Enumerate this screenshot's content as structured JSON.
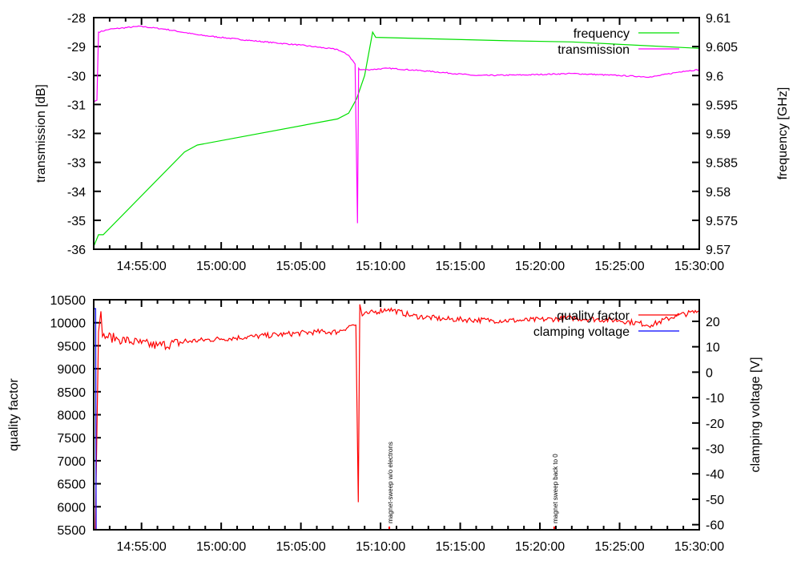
{
  "chart_data": [
    {
      "type": "line",
      "xlabel": "",
      "ylabel": "transmission [dB]",
      "y2label": "frequency [GHz]",
      "xlim_minutes_after_14_52": [
        0,
        38
      ],
      "xticks": [
        {
          "t": 3,
          "label": "14:55:00"
        },
        {
          "t": 8,
          "label": "15:00:00"
        },
        {
          "t": 13,
          "label": "15:05:00"
        },
        {
          "t": 18,
          "label": "15:10:00"
        },
        {
          "t": 23,
          "label": "15:15:00"
        },
        {
          "t": 28,
          "label": "15:20:00"
        },
        {
          "t": 33,
          "label": "15:25:00"
        },
        {
          "t": 38,
          "label": "15:30:00"
        }
      ],
      "ylim": [
        -36,
        -28
      ],
      "yticks": [
        "-28",
        "-29",
        "-30",
        "-31",
        "-32",
        "-33",
        "-34",
        "-35",
        "-36"
      ],
      "y2lim": [
        9.57,
        9.61
      ],
      "y2ticks": [
        "9.61",
        "9.605",
        "9.6",
        "9.595",
        "9.59",
        "9.585",
        "9.58",
        "9.575",
        "9.57"
      ],
      "legend_position": "top-right",
      "series": [
        {
          "name": "frequency",
          "axis": "y2",
          "color": "#00e000",
          "t": [
            0,
            0.3,
            0.6,
            5.7,
            6.5,
            15.3,
            16.0,
            16.5,
            17.0,
            17.5,
            17.7,
            26,
            30,
            38
          ],
          "values": [
            9.5705,
            9.5725,
            9.5725,
            9.5868,
            9.588,
            9.5925,
            9.5935,
            9.596,
            9.6,
            9.6075,
            9.6066,
            9.606,
            9.6058,
            9.6047
          ]
        },
        {
          "name": "transmission",
          "axis": "y",
          "color": "#ff00ff",
          "t": [
            0,
            0.2,
            0.3,
            1,
            2.9,
            4.5,
            6.6,
            10,
            13,
            15.3,
            16.0,
            16.4,
            16.55,
            16.62,
            16.7,
            17.2,
            18.5,
            21,
            24,
            27,
            30,
            33,
            35,
            37,
            38
          ],
          "values": [
            -30.9,
            -30.85,
            -28.5,
            -28.4,
            -28.3,
            -28.4,
            -28.6,
            -28.8,
            -28.95,
            -29.1,
            -29.3,
            -29.6,
            -35.1,
            -29.75,
            -29.8,
            -29.8,
            -29.75,
            -29.85,
            -30.0,
            -29.98,
            -29.93,
            -30.0,
            -30.05,
            -29.85,
            -29.8
          ]
        }
      ]
    },
    {
      "type": "line",
      "xlabel": "",
      "ylabel": "quality factor",
      "y2label": "clamping voltage [V]",
      "xlim_minutes_after_14_52": [
        0,
        38
      ],
      "xticks": [
        {
          "t": 3,
          "label": "14:55:00"
        },
        {
          "t": 8,
          "label": "15:00:00"
        },
        {
          "t": 13,
          "label": "15:05:00"
        },
        {
          "t": 18,
          "label": "15:10:00"
        },
        {
          "t": 23,
          "label": "15:15:00"
        },
        {
          "t": 28,
          "label": "15:20:00"
        },
        {
          "t": 33,
          "label": "15:25:00"
        },
        {
          "t": 38,
          "label": "15:30:00"
        }
      ],
      "ylim": [
        5500,
        10500
      ],
      "yticks": [
        "10500",
        "10000",
        "9500",
        "9000",
        "8500",
        "8000",
        "7500",
        "7000",
        "6500",
        "6000",
        "5500"
      ],
      "y2lim": [
        -62,
        28.5
      ],
      "y2ticks": [
        "20",
        "10",
        "0",
        "-10",
        "-20",
        "-30",
        "-40",
        "-50",
        "-60"
      ],
      "legend_position": "top-right",
      "series": [
        {
          "name": "quality factor",
          "axis": "y",
          "color": "#ff0000",
          "t": [
            0.1,
            0.3,
            0.45,
            0.55,
            0.8,
            1.5,
            3,
            4,
            6,
            8,
            10,
            12,
            14,
            15.3,
            16.2,
            16.45,
            16.6,
            16.7,
            16.85,
            17.2,
            18.5,
            20,
            22,
            25,
            27,
            30,
            33,
            35,
            36.5,
            38
          ],
          "values": [
            5500,
            9800,
            10250,
            9700,
            9700,
            9650,
            9550,
            9500,
            9600,
            9650,
            9700,
            9750,
            9800,
            9800,
            9950,
            9950,
            6100,
            10400,
            10150,
            10200,
            10300,
            10150,
            10080,
            10050,
            10050,
            10100,
            10050,
            9950,
            10150,
            10250
          ]
        },
        {
          "name": "clamping voltage",
          "axis": "y2",
          "color": "#0000ff",
          "t": [
            0.05,
            0.12,
            0.15
          ],
          "values": [
            25,
            25,
            -62
          ]
        }
      ],
      "annotations": [
        {
          "t": 18.55,
          "label": "magnet-sweep w/o electrons"
        },
        {
          "t": 28.9,
          "label": "magnet sweep back to 0"
        }
      ]
    }
  ]
}
